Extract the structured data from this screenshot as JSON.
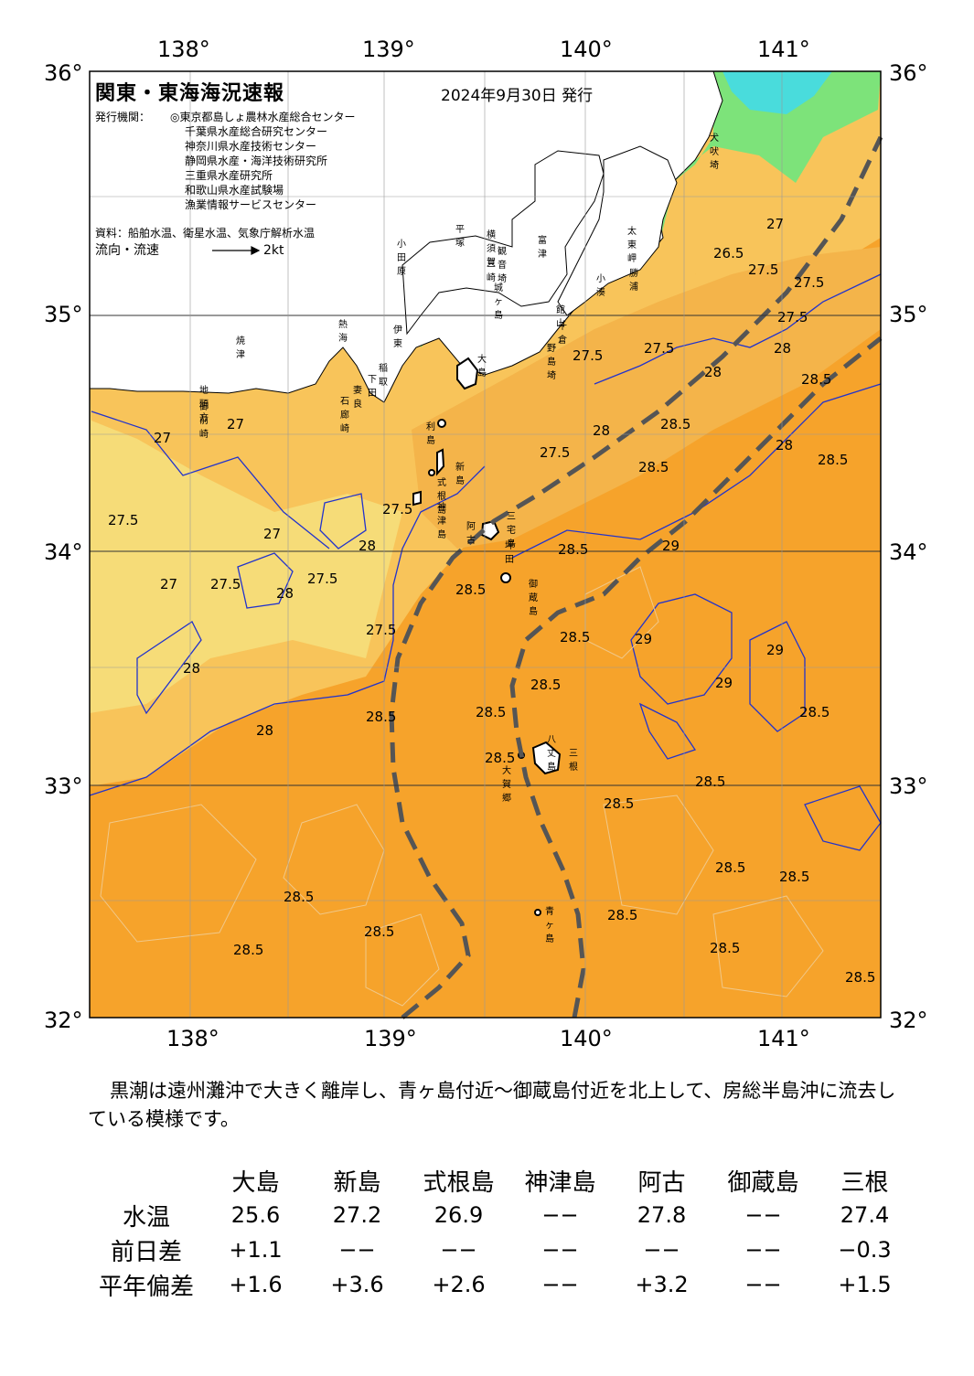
{
  "header": {
    "title": "関東・東海海況速報",
    "date": "2024年9月30日 発行",
    "issuer_label": "発行機関：",
    "issuers": [
      "◎東京都島しょ農林水産総合センター",
      "千葉県水産総合研究センター",
      "神奈川県水産技術センター",
      "静岡県水産・海洋技術研究所",
      "三重県水産研究所",
      "和歌山県水産試験場",
      "漁業情報サービスセンター"
    ],
    "source": "資料：船舶水温、衛星水温、気象庁解析水温",
    "flow_label": "流向・流速",
    "flow_scale": "2kt"
  },
  "axes": {
    "lon_labels": [
      "138°",
      "139°",
      "140°",
      "141°"
    ],
    "lat_labels": [
      "36°",
      "35°",
      "34°",
      "33°",
      "32°"
    ]
  },
  "colors": {
    "sea_warm": "#f6a32b",
    "sea_mid": "#f8b94a",
    "sea_cool": "#f9cf6a",
    "sea_coolest": "#f6e07a",
    "green": "#7de37a",
    "cyan": "#49dcdc",
    "kuroshio": "#555555",
    "contour": "#2233cc"
  },
  "contour_labels": [
    "27.5",
    "27",
    "27",
    "27",
    "27.5",
    "27",
    "27.5",
    "28",
    "27.5",
    "28",
    "27.5",
    "28",
    "28",
    "28.5",
    "28.5",
    "28.5",
    "28.5",
    "28.5",
    "28.5",
    "28.5",
    "28.5",
    "28.5",
    "29",
    "29",
    "29",
    "29",
    "28.5",
    "28.5",
    "28.5",
    "28.5",
    "28.5",
    "28.5",
    "28.5",
    "28.5",
    "28.5",
    "28.5",
    "28.5",
    "27.5",
    "28",
    "28",
    "27.5",
    "27.5",
    "27.5",
    "28",
    "28.5",
    "28.5",
    "26.5",
    "27",
    "27.5",
    "27.5",
    "28"
  ],
  "places": {
    "oshima": "大島",
    "toshima": "利島",
    "niijima": "新島",
    "shikine": "式根島",
    "kozu": "神津島",
    "miyake": "三宅島",
    "ako": "阿古",
    "tsubota": "坪田",
    "mikura": "御蔵島",
    "hachijo": "八丈島",
    "mitsune": "三根",
    "okago": "大賀郷",
    "aogashima": "青ヶ島",
    "nojimazaki": "野島埼",
    "chikura": "千倉",
    "tateyama": "館山",
    "kominato": "小湊",
    "katsuura": "勝浦",
    "taitomisaki": "太東岬",
    "inubo": "犬吠埼",
    "odawara": "小田原",
    "hiratsuka": "平塚",
    "yokosuka": "横須賀",
    "futtsu": "富津",
    "kannonzaki": "観音埼",
    "miura": "三崎",
    "jogashima": "城ヶ島",
    "ito": "伊東",
    "inatori": "稲取",
    "shimoda": "下田",
    "mera": "妻良",
    "irozaki": "石廊崎",
    "atami": "熱海",
    "yaizu": "焼津",
    "omaezaki": "御前崎",
    "chikyu": "地頭方"
  },
  "summary": "黒潮は遠州灘沖で大きく離岸し、青ヶ島付近～御蔵島付近を北上して、房総半島沖に流去している模様です。",
  "table": {
    "columns": [
      "大島",
      "新島",
      "式根島",
      "神津島",
      "阿古",
      "御蔵島",
      "三根"
    ],
    "rows": [
      {
        "label": "水温",
        "values": [
          "25.6",
          "27.2",
          "26.9",
          "−−",
          "27.8",
          "−−",
          "27.4"
        ]
      },
      {
        "label": "前日差",
        "values": [
          "+1.1",
          "−−",
          "−−",
          "−−",
          "−−",
          "−−",
          "−0.3"
        ]
      },
      {
        "label": "平年偏差",
        "values": [
          "+1.6",
          "+3.6",
          "+2.6",
          "−−",
          "+3.2",
          "−−",
          "+1.5"
        ]
      }
    ]
  }
}
